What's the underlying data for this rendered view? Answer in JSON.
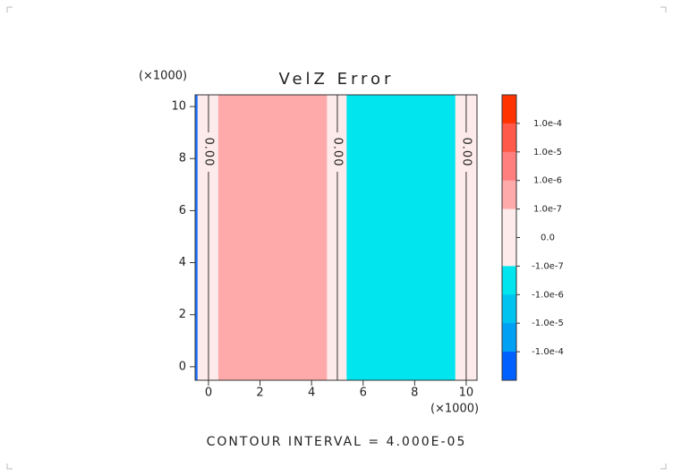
{
  "chart_data": {
    "type": "contour",
    "title": "VelZ Error",
    "x_scale_label": "(×1000)",
    "y_scale_label": "(×1000)",
    "xlim": [
      -0.52,
      10.42
    ],
    "ylim": [
      -0.52,
      10.45
    ],
    "xticks": [
      0,
      2,
      4,
      6,
      8,
      10
    ],
    "yticks": [
      0,
      2,
      4,
      6,
      8,
      10
    ],
    "regions": [
      {
        "x0": -0.52,
        "x1": -0.42,
        "color": "#1a6fff"
      },
      {
        "x0": -0.42,
        "x1": 0.38,
        "color": "#fdeaea"
      },
      {
        "x0": 0.38,
        "x1": 4.6,
        "color": "#ffaaaa"
      },
      {
        "x0": 4.6,
        "x1": 5.36,
        "color": "#fdeaea"
      },
      {
        "x0": 5.36,
        "x1": 9.58,
        "color": "#00e5ee"
      },
      {
        "x0": 9.58,
        "x1": 10.42,
        "color": "#fdeaea"
      }
    ],
    "contours": [
      {
        "x": 0,
        "label": "0.00"
      },
      {
        "x": 5,
        "label": "0.00"
      },
      {
        "x": 10,
        "label": "0.00"
      }
    ],
    "colorbar": {
      "colors": [
        "#ff3300",
        "#ff5a4a",
        "#ff7f7f",
        "#ffaaaa",
        "#fdeaea",
        "#fdeaea",
        "#00e5ee",
        "#00c3f0",
        "#00a0f5",
        "#0060ff"
      ],
      "labels": [
        "1.0e-4",
        "1.0e-5",
        "1.0e-6",
        "1.0e-7",
        "0.0",
        "-1.0e-7",
        "-1.0e-6",
        "-1.0e-5",
        "-1.0e-4"
      ]
    },
    "footer": "CONTOUR INTERVAL = 4.000E-05"
  }
}
